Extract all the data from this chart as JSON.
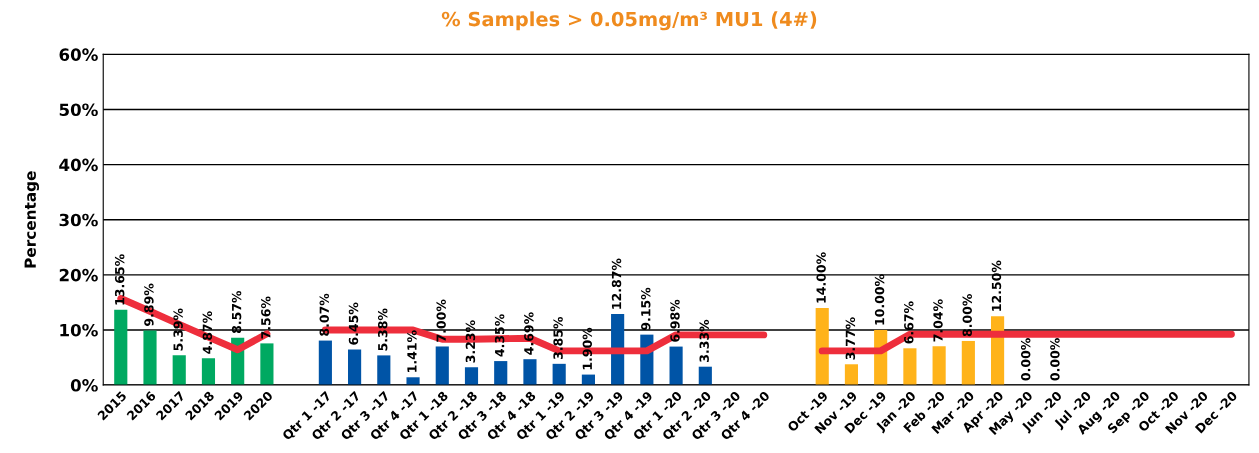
{
  "chart_data": {
    "type": "bar",
    "title": "% Samples > 0.05mg/m³ MU1 (4#)",
    "ylabel": "Percentage",
    "categories": [
      "2015",
      "2016",
      "2017",
      "2018",
      "2019",
      "2020",
      null,
      "Qtr 1 -17",
      "Qtr 2 -17",
      "Qtr 3 -17",
      "Qtr 4 -17",
      "Qtr 1 -18",
      "Qtr 2 -18",
      "Qtr 3 -18",
      "Qtr 4 -18",
      "Qtr 1 -19",
      "Qtr 2 -19",
      "Qtr 3 -19",
      "Qtr 4 -19",
      "Qtr 1 -20",
      "Qtr 2 -20",
      "Qtr 3 -20",
      "Qtr 4 -20",
      null,
      "Oct -19",
      "Nov -19",
      "Dec -19",
      "Jan -20",
      "Feb -20",
      "Mar -20",
      "Apr -20",
      "May -20",
      "Jun -20",
      "Jul -20",
      "Aug -20",
      "Sep -20",
      "Oct -20",
      "Nov -20",
      "Dec -20"
    ],
    "series": [
      {
        "colors": [
          "#00a961",
          "#00a961",
          "#00a961",
          "#00a961",
          "#00a961",
          "#00a961",
          null,
          "#0054a6",
          "#0054a6",
          "#0054a6",
          "#0054a6",
          "#0054a6",
          "#0054a6",
          "#0054a6",
          "#0054a6",
          "#0054a6",
          "#0054a6",
          "#0054a6",
          "#0054a6",
          "#0054a6",
          "#0054a6",
          "#0054a6",
          "#0054a6",
          null,
          "#ffb31a",
          "#ffb31a",
          "#ffb31a",
          "#ffb31a",
          "#ffb31a",
          "#ffb31a",
          "#ffb31a",
          "#ffb31a",
          "#ffb31a",
          "#ffb31a",
          "#ffb31a",
          "#ffb31a",
          "#ffb31a",
          "#ffb31a",
          "#ffb31a"
        ],
        "values": [
          13.65,
          9.89,
          5.39,
          4.87,
          8.57,
          7.56,
          null,
          8.07,
          6.45,
          5.38,
          1.41,
          7.0,
          3.23,
          4.35,
          4.69,
          3.85,
          1.9,
          12.87,
          9.15,
          6.98,
          3.33,
          null,
          null,
          null,
          14.0,
          3.77,
          10.0,
          6.67,
          7.04,
          8.0,
          12.5,
          0.0,
          0.0,
          null,
          null,
          null,
          null,
          null,
          null
        ],
        "value_labels": [
          "13.65%",
          "9.89%",
          "5.39%",
          "4.87%",
          "8.57%",
          "7.56%",
          null,
          "8.07%",
          "6.45%",
          "5.38%",
          "1.41%",
          "7.00%",
          "3.23%",
          "4.35%",
          "4.69%",
          "3.85%",
          "1.90%",
          "12.87%",
          "9.15%",
          "6.98%",
          "3.33%",
          null,
          null,
          null,
          "14.00%",
          "3.77%",
          "10.00%",
          "6.67%",
          "7.04%",
          "8.00%",
          "12.50%",
          "0.00%",
          "0.00%",
          null,
          null,
          null,
          null,
          null,
          null
        ]
      },
      {
        "type": "line",
        "color": "#ee2e3c",
        "values": [
          15.7,
          13.4,
          11.0,
          8.7,
          6.4,
          9.3,
          null,
          10.0,
          10.0,
          10.0,
          10.0,
          8.3,
          8.3,
          8.4,
          8.5,
          6.2,
          6.2,
          6.2,
          6.2,
          9.1,
          9.1,
          9.1,
          9.1,
          null,
          6.2,
          6.2,
          6.2,
          9.2,
          9.2,
          9.2,
          9.2,
          9.2,
          9.2,
          9.2,
          9.2,
          9.2,
          9.2,
          9.2,
          9.2
        ]
      }
    ],
    "ylim": [
      0,
      60
    ],
    "yticks": [
      {
        "value": 0,
        "label": "0%"
      },
      {
        "value": 10,
        "label": "10%"
      },
      {
        "value": 20,
        "label": "20%"
      },
      {
        "value": 30,
        "label": "30%"
      },
      {
        "value": 40,
        "label": "40%"
      },
      {
        "value": 50,
        "label": "50%"
      },
      {
        "value": 60,
        "label": "60%"
      }
    ],
    "grid": "y",
    "marker": "none",
    "line_style": "solid"
  }
}
